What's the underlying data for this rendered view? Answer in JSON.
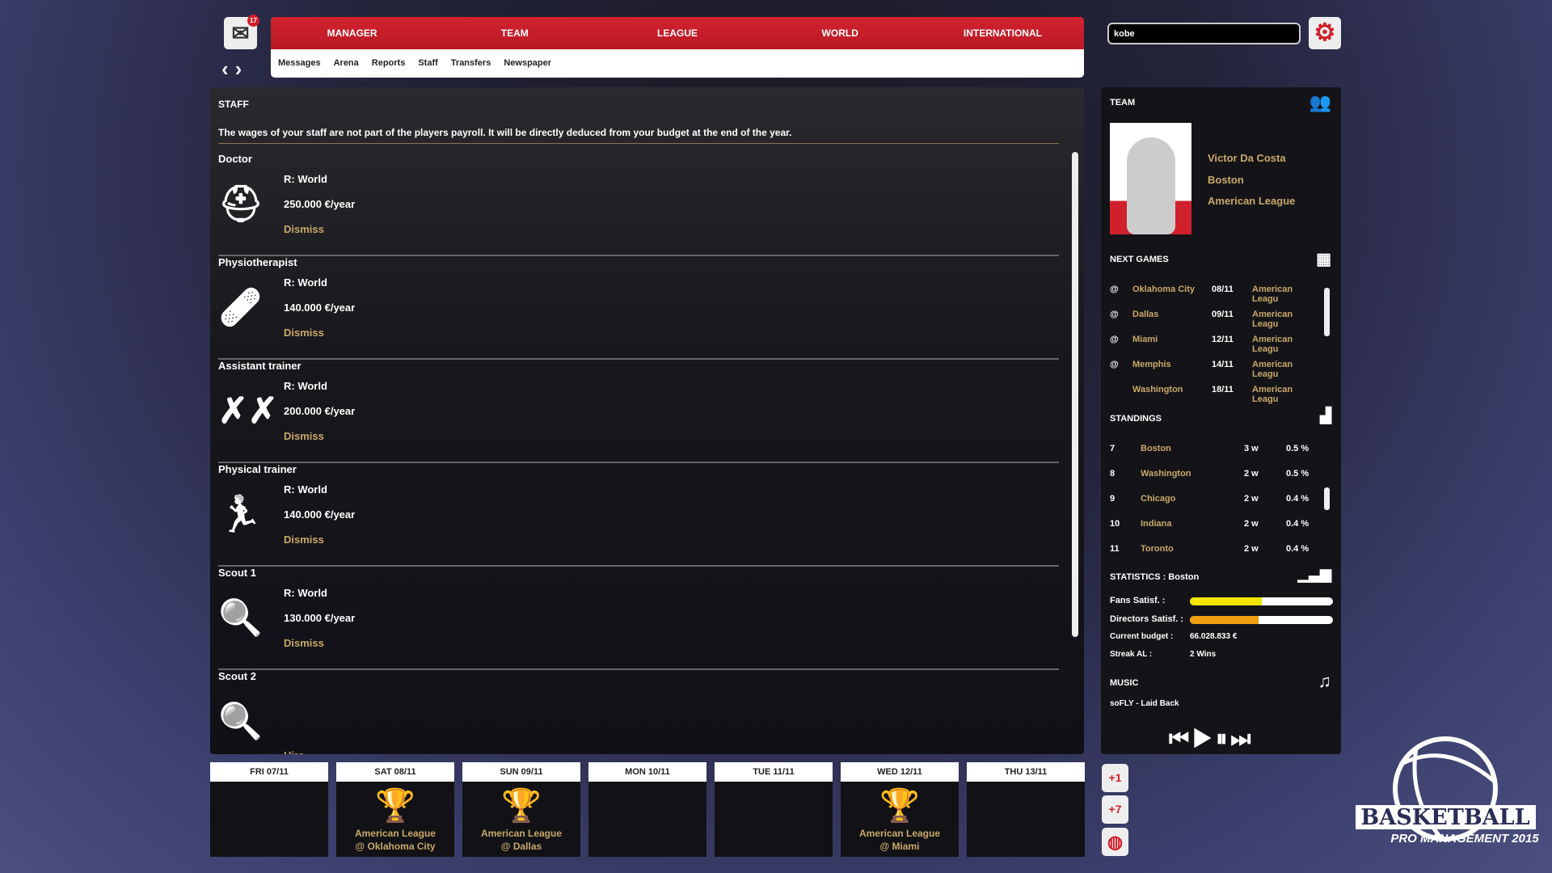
{
  "header": {
    "mail_badge": "17",
    "nav": [
      "MANAGER",
      "TEAM",
      "LEAGUE",
      "WORLD",
      "INTERNATIONAL"
    ],
    "subnav": [
      "Messages",
      "Arena",
      "Reports",
      "Staff",
      "Transfers",
      "Newspaper"
    ],
    "search_value": "kobe"
  },
  "staff": {
    "title": "STAFF",
    "notice": "The wages of your staff are not part of the players payroll. It will be directly deduced from your budget at the end of the year.",
    "entries": [
      {
        "title": "Doctor",
        "icon": "medical-kit-icon",
        "region": "R: World",
        "wage": "250.000 €/year",
        "action": "Dismiss"
      },
      {
        "title": "Physiotherapist",
        "icon": "bandage-icon",
        "region": "R: World",
        "wage": "140.000 €/year",
        "action": "Dismiss"
      },
      {
        "title": "Assistant trainer",
        "icon": "tactics-icon",
        "region": "R: World",
        "wage": "200.000 €/year",
        "action": "Dismiss"
      },
      {
        "title": "Physical trainer",
        "icon": "runner-icon",
        "region": "R: World",
        "wage": "140.000 €/year",
        "action": "Dismiss"
      },
      {
        "title": "Scout 1",
        "icon": "magnifier-icon",
        "region": "R: World",
        "wage": "130.000 €/year",
        "action": "Dismiss"
      },
      {
        "title": "Scout 2",
        "icon": "magnifier-icon",
        "region": "",
        "wage": "",
        "action": "Hire"
      }
    ]
  },
  "team": {
    "title": "TEAM",
    "manager": "Victor Da Costa",
    "city": "Boston",
    "league": "American League"
  },
  "next_games": {
    "title": "NEXT GAMES",
    "rows": [
      {
        "at": "@",
        "team": "Oklahoma City",
        "date": "08/11",
        "league": "American Leagu"
      },
      {
        "at": "@",
        "team": "Dallas",
        "date": "09/11",
        "league": "American Leagu"
      },
      {
        "at": "@",
        "team": "Miami",
        "date": "12/11",
        "league": "American Leagu"
      },
      {
        "at": "@",
        "team": "Memphis",
        "date": "14/11",
        "league": "American Leagu"
      },
      {
        "at": "",
        "team": "Washington",
        "date": "18/11",
        "league": "American Leagu"
      }
    ]
  },
  "standings": {
    "title": "STANDINGS",
    "rows": [
      {
        "rank": "7",
        "team": "Boston",
        "wins": "3 w",
        "pct": "0.5 %"
      },
      {
        "rank": "8",
        "team": "Washington",
        "wins": "2 w",
        "pct": "0.5 %"
      },
      {
        "rank": "9",
        "team": "Chicago",
        "wins": "2 w",
        "pct": "0.4 %"
      },
      {
        "rank": "10",
        "team": "Indiana",
        "wins": "2 w",
        "pct": "0.4 %"
      },
      {
        "rank": "11",
        "team": "Toronto",
        "wins": "2 w",
        "pct": "0.4 %"
      }
    ]
  },
  "statistics": {
    "title": "STATISTICS : Boston",
    "fans_label": "Fans Satisf. :",
    "fans_level": 0.5,
    "fans_color": "#f2e600",
    "directors_label": "Directors Satisf. :",
    "directors_level": 0.48,
    "directors_color": "#f0a010",
    "budget_label": "Current budget :",
    "budget": "66.028.833 €",
    "streak_label": "Streak AL :",
    "streak": "2 Wins"
  },
  "music": {
    "title": "MUSIC",
    "track": "soFLY - Laid Back"
  },
  "calendar": [
    {
      "day": "FRI 07/11"
    },
    {
      "day": "SAT 08/11",
      "league": "American League",
      "opponent": "@ Oklahoma City"
    },
    {
      "day": "SUN 09/11",
      "league": "American League",
      "opponent": "@ Dallas"
    },
    {
      "day": "MON 10/11"
    },
    {
      "day": "TUE 11/11"
    },
    {
      "day": "WED 12/11",
      "league": "American League",
      "opponent": "@ Miami"
    },
    {
      "day": "THU 13/11"
    }
  ],
  "side_buttons": [
    "+1",
    "+7"
  ],
  "logo": {
    "line1": "BASKETBALL",
    "line2": "PRO MANAGEMENT 2015"
  },
  "colors": {
    "accent": "#d0202c",
    "gold": "#c9a86a"
  }
}
